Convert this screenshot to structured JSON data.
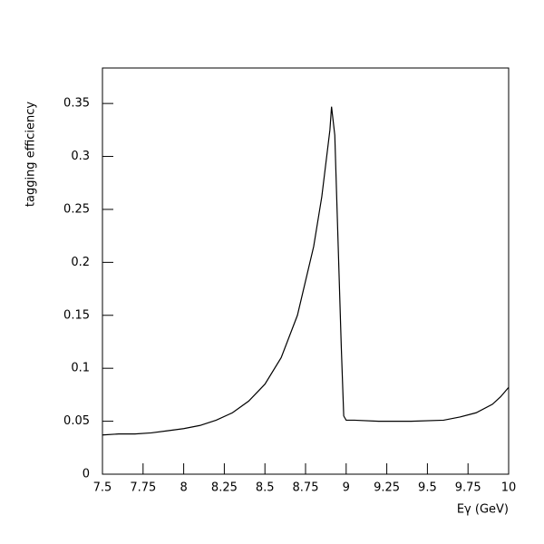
{
  "chart_data": {
    "type": "line",
    "x_label": "Eγ (GeV)",
    "y_label": "tagging efficiency",
    "x": [
      7.5,
      7.6,
      7.7,
      7.8,
      7.9,
      8.0,
      8.1,
      8.2,
      8.3,
      8.4,
      8.5,
      8.6,
      8.7,
      8.8,
      8.85,
      8.9,
      8.91,
      8.93,
      8.95,
      8.97,
      8.985,
      9.0,
      9.05,
      9.2,
      9.4,
      9.6,
      9.7,
      9.8,
      9.9,
      9.95,
      10.0
    ],
    "series": [
      {
        "color": "#000000",
        "values": [
          0.037,
          0.038,
          0.038,
          0.039,
          0.041,
          0.043,
          0.046,
          0.051,
          0.058,
          0.069,
          0.085,
          0.11,
          0.15,
          0.215,
          0.262,
          0.325,
          0.347,
          0.32,
          0.22,
          0.12,
          0.055,
          0.051,
          0.051,
          0.05,
          0.05,
          0.051,
          0.054,
          0.058,
          0.066,
          0.073,
          0.082
        ]
      }
    ],
    "xlim": [
      7.5,
      10
    ],
    "ylim": [
      0,
      0.3835
    ],
    "xticks": [
      7.5,
      7.75,
      8,
      8.25,
      8.5,
      8.75,
      9,
      9.25,
      9.5,
      9.75,
      10
    ],
    "yticks": [
      0,
      0.05,
      0.1,
      0.15,
      0.2,
      0.25,
      0.3,
      0.35
    ]
  }
}
